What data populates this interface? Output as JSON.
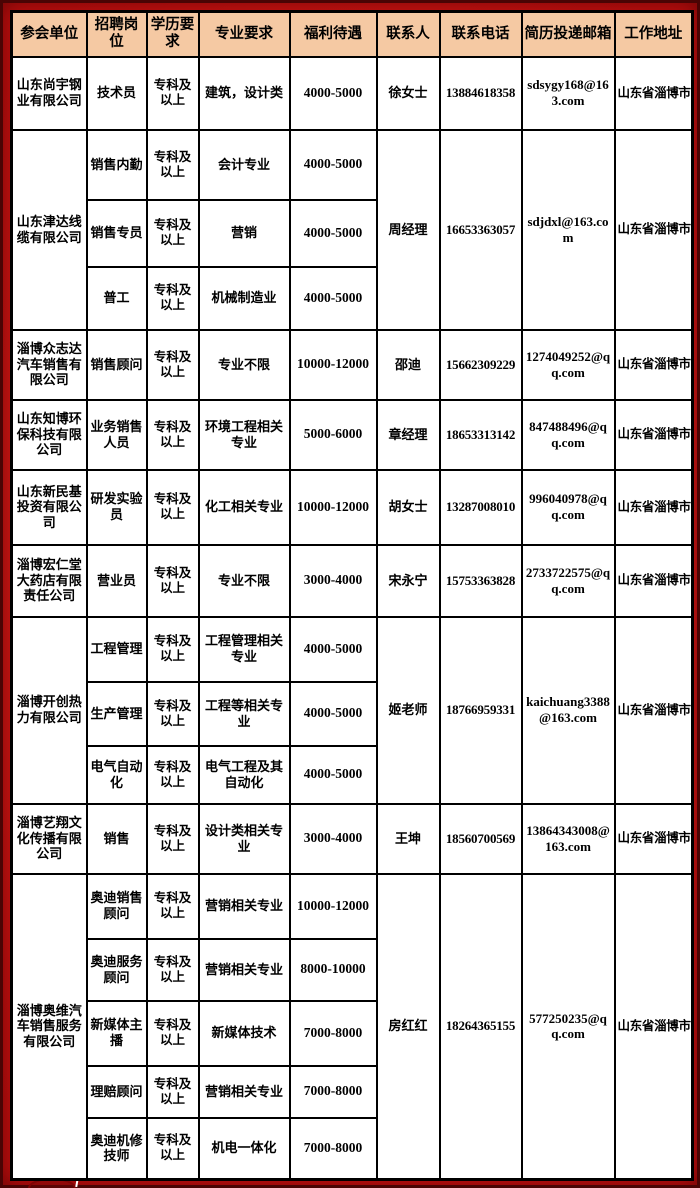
{
  "colors": {
    "background_red": "#c11010",
    "frame_dark_red": "#4a0404",
    "header_bg": "#f5c9a3",
    "cell_bg": "#ffffff",
    "grid_line": "#000000",
    "text": "#000000"
  },
  "table": {
    "headers": [
      "参会单位",
      "招聘岗位",
      "学历要求",
      "专业要求",
      "福利待遇",
      "联系人",
      "联系电话",
      "简历投递邮箱",
      "工作地址"
    ],
    "companies": [
      {
        "name": "山东尚宇钢业有限公司",
        "contact": "徐女士",
        "phone": "13884618358",
        "email": "sdsygy168@163.com",
        "address": "山东省淄博市",
        "positions": [
          {
            "title": "技术员",
            "education": "专科及以上",
            "major": "建筑，设计类",
            "salary": "4000-5000"
          }
        ]
      },
      {
        "name": "山东津达线缆有限公司",
        "contact": "周经理",
        "phone": "16653363057",
        "email": "sdjdxl@163.com",
        "address": "山东省淄博市",
        "positions": [
          {
            "title": "销售内勤",
            "education": "专科及以上",
            "major": "会计专业",
            "salary": "4000-5000"
          },
          {
            "title": "销售专员",
            "education": "专科及以上",
            "major": "营销",
            "salary": "4000-5000"
          },
          {
            "title": "普工",
            "education": "专科及以上",
            "major": "机械制造业",
            "salary": "4000-5000"
          }
        ]
      },
      {
        "name": "淄博众志达汽车销售有限公司",
        "contact": "邵迪",
        "phone": "15662309229",
        "email": "1274049252@qq.com",
        "address": "山东省淄博市",
        "positions": [
          {
            "title": "销售顾问",
            "education": "专科及以上",
            "major": "专业不限",
            "salary": "10000-12000"
          }
        ]
      },
      {
        "name": "山东知博环保科技有限公司",
        "contact": "章经理",
        "phone": "18653313142",
        "email": "847488496@qq.com",
        "address": "山东省淄博市",
        "positions": [
          {
            "title": "业务销售人员",
            "education": "专科及以上",
            "major": "环境工程相关专业",
            "salary": "5000-6000"
          }
        ]
      },
      {
        "name": "山东新民基投资有限公司",
        "contact": "胡女士",
        "phone": "13287008010",
        "email": "996040978@qq.com",
        "address": "山东省淄博市",
        "positions": [
          {
            "title": "研发实验员",
            "education": "专科及以上",
            "major": "化工相关专业",
            "salary": "10000-12000"
          }
        ]
      },
      {
        "name": "淄博宏仁堂大药店有限责任公司",
        "contact": "宋永宁",
        "phone": "15753363828",
        "email": "2733722575@qq.com",
        "address": "山东省淄博市",
        "positions": [
          {
            "title": "营业员",
            "education": "专科及以上",
            "major": "专业不限",
            "salary": "3000-4000"
          }
        ]
      },
      {
        "name": "淄博开创热力有限公司",
        "contact": "姬老师",
        "phone": "18766959331",
        "email": "kaichuang3388@163.com",
        "address": "山东省淄博市",
        "positions": [
          {
            "title": "工程管理",
            "education": "专科及以上",
            "major": "工程管理相关专业",
            "salary": "4000-5000"
          },
          {
            "title": "生产管理",
            "education": "专科及以上",
            "major": "工程等相关专业",
            "salary": "4000-5000"
          },
          {
            "title": "电气自动化",
            "education": "专科及以上",
            "major": "电气工程及其自动化",
            "salary": "4000-5000"
          }
        ]
      },
      {
        "name": "淄博艺翔文化传播有限公司",
        "contact": "王坤",
        "phone": "18560700569",
        "email": "13864343008@163.com",
        "address": "山东省淄博市",
        "positions": [
          {
            "title": "销售",
            "education": "专科及以上",
            "major": "设计类相关专业",
            "salary": "3000-4000"
          }
        ]
      },
      {
        "name": "淄博奥维汽车销售服务有限公司",
        "contact": "房红红",
        "phone": "18264365155",
        "email": "577250235@qq.com",
        "address": "山东省淄博市",
        "positions": [
          {
            "title": "奥迪销售顾问",
            "education": "专科及以上",
            "major": "营销相关专业",
            "salary": "10000-12000"
          },
          {
            "title": "奥迪服务顾问",
            "education": "专科及以上",
            "major": "营销相关专业",
            "salary": "8000-10000"
          },
          {
            "title": "新媒体主播",
            "education": "专科及以上",
            "major": "新媒体技术",
            "salary": "7000-8000"
          },
          {
            "title": "理赔顾问",
            "education": "专科及以上",
            "major": "营销相关专业",
            "salary": "7000-8000"
          },
          {
            "title": "奥迪机修技师",
            "education": "专科及以上",
            "major": "机电一体化",
            "salary": "7000-8000"
          }
        ]
      }
    ]
  }
}
